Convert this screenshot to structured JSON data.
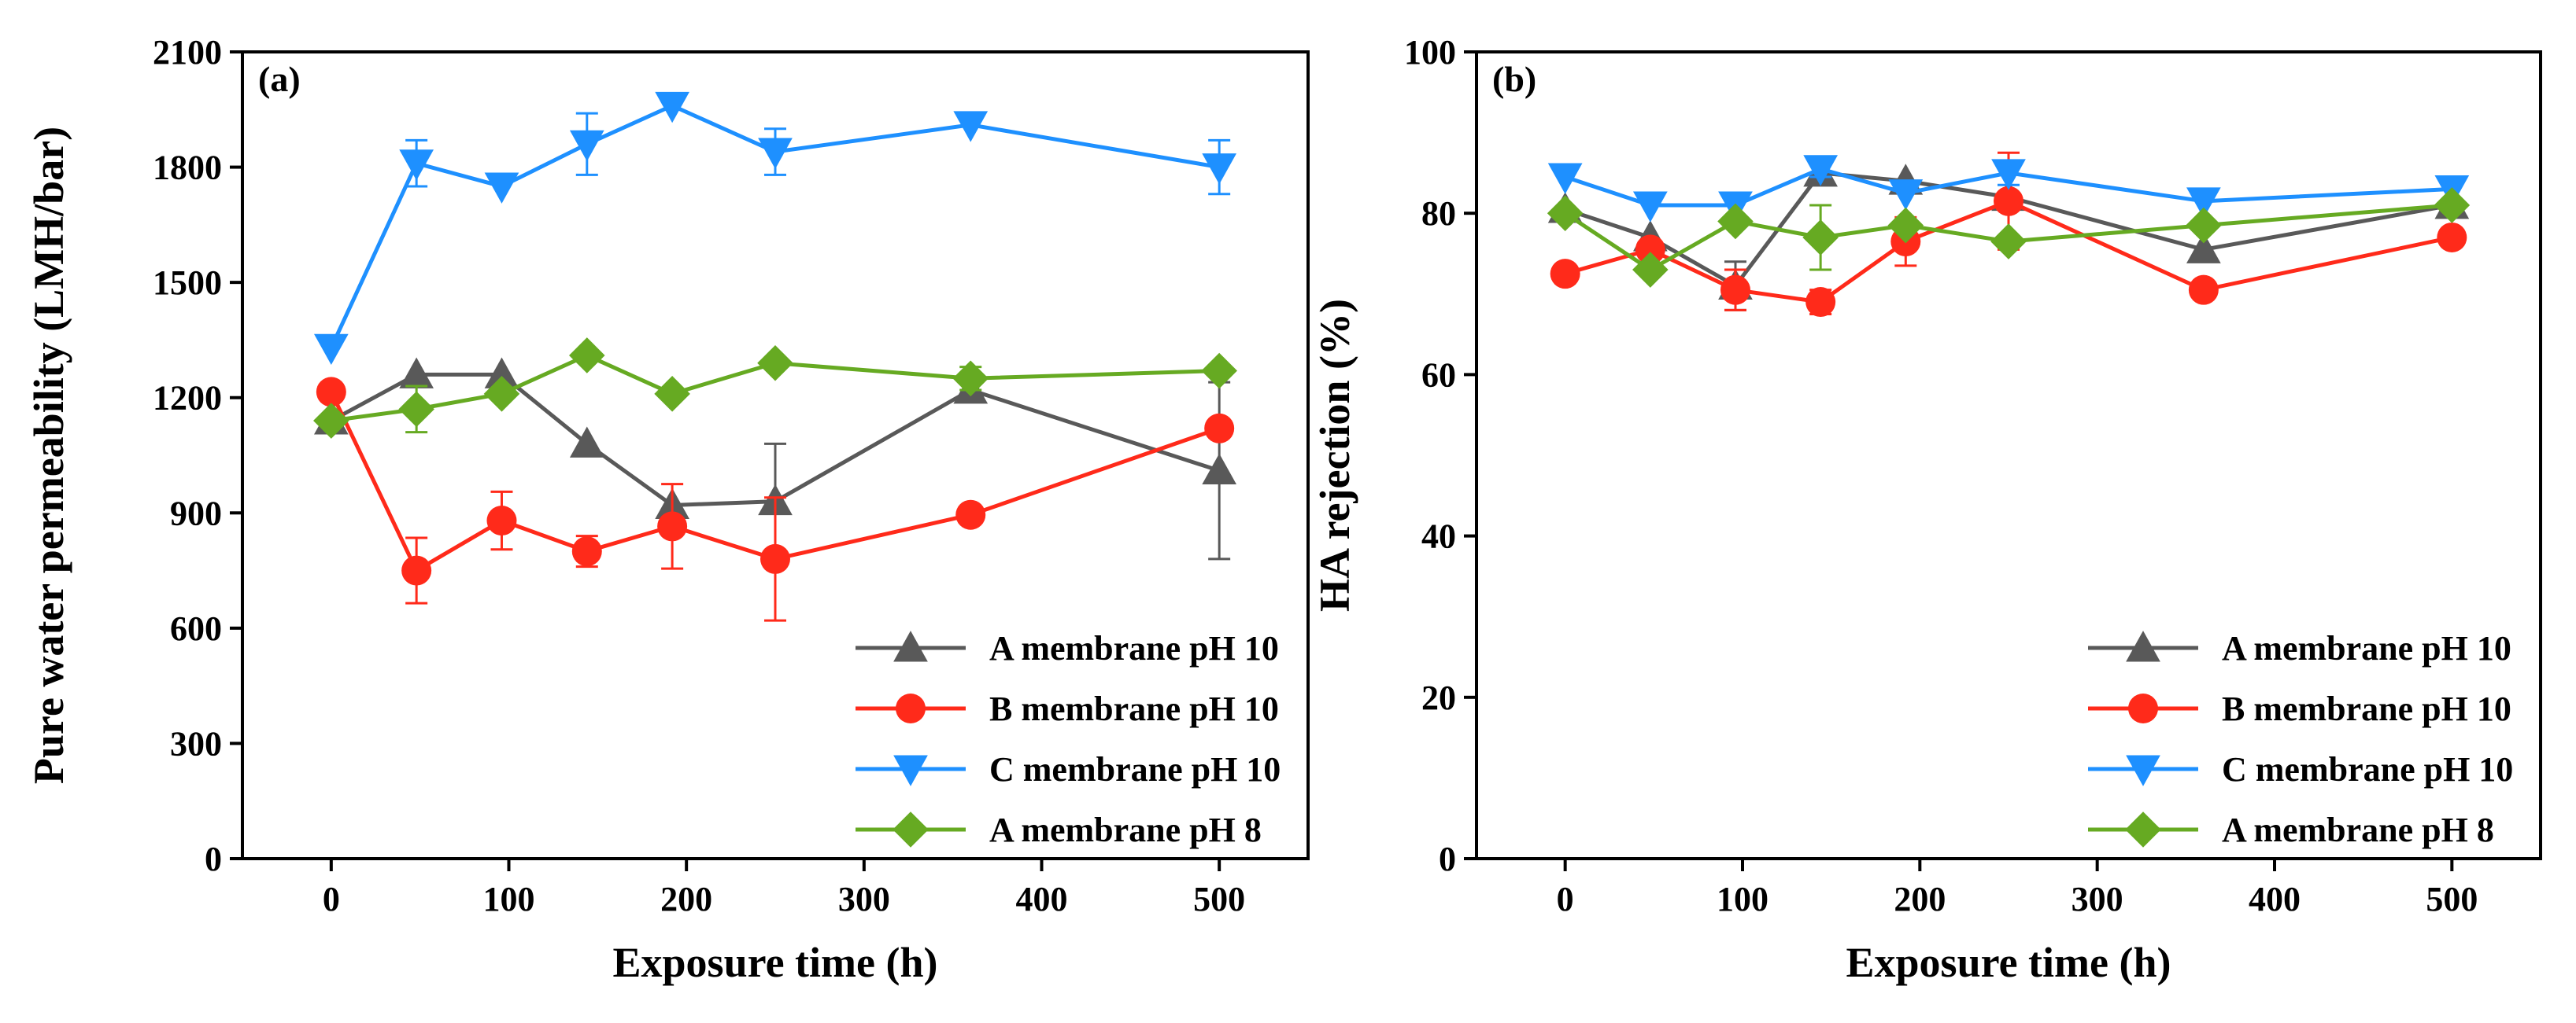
{
  "figure": {
    "colors": {
      "A_pH10": "#595959",
      "B_pH10": "#ff2a1a",
      "C_pH10": "#1e90ff",
      "A_pH8": "#66aa22"
    }
  },
  "chart_data": [
    {
      "type": "line",
      "panel_label": "(a)",
      "xlabel": "Exposure time (h)",
      "ylabel": "Pure water permeability (LMH/bar)",
      "xlim": [
        -50,
        550
      ],
      "ylim": [
        0,
        2100
      ],
      "xticks": [
        0,
        100,
        200,
        300,
        400,
        500
      ],
      "yticks": [
        0,
        300,
        600,
        900,
        1200,
        1500,
        1800,
        2100
      ],
      "legend_position": "bottom-right",
      "series": [
        {
          "name": "A membrane pH 10",
          "marker": "triangle-up",
          "color_key": "A_pH10",
          "x": [
            0,
            48,
            96,
            144,
            192,
            250,
            360,
            500
          ],
          "y": [
            1140,
            1260,
            1260,
            1080,
            920,
            930,
            1220,
            1010
          ],
          "err": [
            0,
            0,
            0,
            0,
            0,
            150,
            0,
            230
          ]
        },
        {
          "name": "B membrane pH 10",
          "marker": "circle",
          "color_key": "B_pH10",
          "x": [
            0,
            48,
            96,
            144,
            192,
            250,
            360,
            500
          ],
          "y": [
            1215,
            750,
            880,
            800,
            865,
            780,
            895,
            1120
          ],
          "err": [
            0,
            85,
            75,
            40,
            110,
            160,
            0,
            0
          ]
        },
        {
          "name": "C membrane pH 10",
          "marker": "triangle-down",
          "color_key": "C_pH10",
          "x": [
            0,
            48,
            96,
            144,
            192,
            250,
            360,
            500
          ],
          "y": [
            1330,
            1810,
            1750,
            1860,
            1960,
            1840,
            1910,
            1800
          ],
          "err": [
            0,
            60,
            0,
            80,
            0,
            60,
            0,
            70
          ]
        },
        {
          "name": "A membrane pH 8",
          "marker": "diamond",
          "color_key": "A_pH8",
          "x": [
            0,
            48,
            96,
            144,
            192,
            250,
            360,
            500
          ],
          "y": [
            1140,
            1170,
            1210,
            1310,
            1210,
            1290,
            1250,
            1270
          ],
          "err": [
            0,
            60,
            0,
            0,
            0,
            0,
            30,
            0
          ]
        }
      ]
    },
    {
      "type": "line",
      "panel_label": "(b)",
      "xlabel": "Exposure time (h)",
      "ylabel": "HA rejection (%)",
      "xlim": [
        -50,
        550
      ],
      "ylim": [
        0,
        100
      ],
      "xticks": [
        0,
        100,
        200,
        300,
        400,
        500
      ],
      "yticks": [
        0,
        20,
        40,
        60,
        80,
        100
      ],
      "legend_position": "bottom-right",
      "series": [
        {
          "name": "A membrane pH 10",
          "marker": "triangle-up",
          "color_key": "A_pH10",
          "x": [
            0,
            48,
            96,
            144,
            192,
            250,
            360,
            500
          ],
          "y": [
            80.5,
            77,
            71,
            85,
            84,
            82,
            75.5,
            81
          ],
          "err": [
            0,
            0,
            3,
            0,
            0,
            0,
            0,
            0
          ]
        },
        {
          "name": "B membrane pH 10",
          "marker": "circle",
          "color_key": "B_pH10",
          "x": [
            0,
            48,
            96,
            144,
            192,
            250,
            360,
            500
          ],
          "y": [
            72.5,
            75.5,
            70.5,
            69,
            76.5,
            81.5,
            70.5,
            77
          ],
          "err": [
            0,
            0,
            2.5,
            1.5,
            3,
            6,
            0,
            0
          ]
        },
        {
          "name": "C membrane pH 10",
          "marker": "triangle-down",
          "color_key": "C_pH10",
          "x": [
            0,
            48,
            96,
            144,
            192,
            250,
            360,
            500
          ],
          "y": [
            84.5,
            81,
            81,
            85.5,
            82.5,
            85,
            81.5,
            83
          ],
          "err": [
            0,
            0,
            0,
            1,
            0,
            1.5,
            0,
            0
          ]
        },
        {
          "name": "A membrane pH 8",
          "marker": "diamond",
          "color_key": "A_pH8",
          "x": [
            0,
            48,
            96,
            144,
            192,
            250,
            360,
            500
          ],
          "y": [
            80,
            73,
            79,
            77,
            78.5,
            76.5,
            78.5,
            81
          ],
          "err": [
            0,
            0,
            0,
            4,
            0,
            0,
            0,
            0
          ]
        }
      ]
    }
  ]
}
